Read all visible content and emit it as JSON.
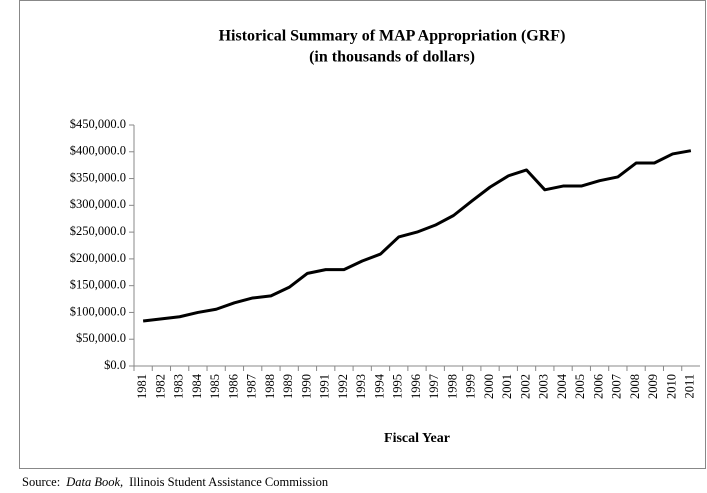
{
  "chart_data": {
    "type": "line",
    "title": "Historical Summary of MAP Appropriation (GRF)",
    "subtitle": "(in thousands of dollars)",
    "x_label": "Fiscal Year",
    "source": {
      "prefix": "Source:",
      "italic": "Data Book,",
      "suffix": "Illinois Student Assistance Commission"
    },
    "categories": [
      "1981",
      "1982",
      "1983",
      "1984",
      "1985",
      "1986",
      "1987",
      "1988",
      "1989",
      "1990",
      "1991",
      "1992",
      "1993",
      "1994",
      "1995",
      "1996",
      "1997",
      "1998",
      "1999",
      "2000",
      "2001",
      "2002",
      "2003",
      "2004",
      "2005",
      "2006",
      "2007",
      "2008",
      "2009",
      "2010",
      "2011"
    ],
    "series": [
      {
        "name": "MAP Appropriation",
        "color": "#000000",
        "values": [
          84000,
          88000,
          92000,
          100000,
          106000,
          118000,
          127000,
          131000,
          147000,
          173000,
          180000,
          180000,
          196000,
          209000,
          241000,
          250000,
          263000,
          281000,
          308000,
          334000,
          355000,
          366000,
          329000,
          336000,
          336000,
          346000,
          353000,
          379000,
          379000,
          396000,
          402000
        ]
      }
    ],
    "ylim": [
      0,
      450000
    ],
    "yticks": [
      {
        "value": 0,
        "label": "$0.0"
      },
      {
        "value": 50000,
        "label": "$50,000.0"
      },
      {
        "value": 100000,
        "label": "$100,000.0"
      },
      {
        "value": 150000,
        "label": "$150,000.0"
      },
      {
        "value": 200000,
        "label": "$200,000.0"
      },
      {
        "value": 250000,
        "label": "$250,000.0"
      },
      {
        "value": 300000,
        "label": "$300,000.0"
      },
      {
        "value": 350000,
        "label": "$350,000.0"
      },
      {
        "value": 400000,
        "label": "$400,000.0"
      },
      {
        "value": 450000,
        "label": "$450,000.0"
      }
    ],
    "grid": false
  }
}
